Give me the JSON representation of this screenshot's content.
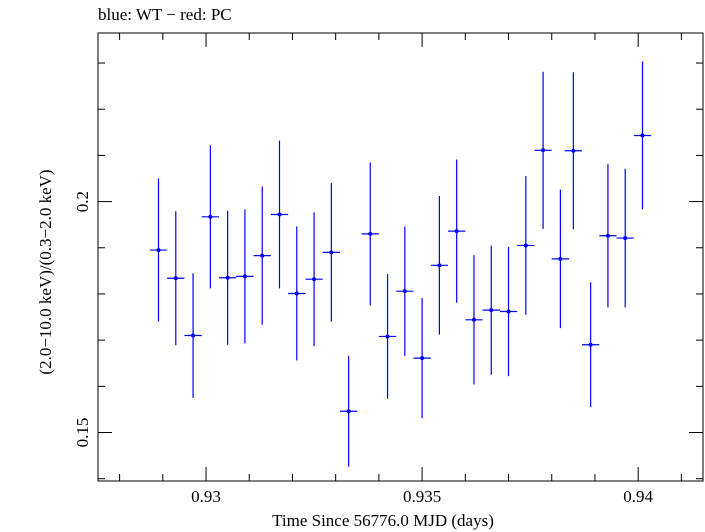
{
  "chart_data": {
    "type": "scatter",
    "title": "blue: WT − red: PC",
    "xlabel": "Time Since 56776.0 MJD (days)",
    "ylabel": "(2.0−10.0 keV)/(0.3−2.0 keV)",
    "xlim": [
      0.9275,
      0.9415
    ],
    "ylim": [
      0.1395,
      0.2365
    ],
    "x_ticks": [
      0.93,
      0.935,
      0.94
    ],
    "x_tick_labels": [
      "0.93",
      "0.935",
      "0.94"
    ],
    "y_ticks": [
      0.15,
      0.2
    ],
    "y_tick_labels": [
      "0.15",
      "0.2"
    ],
    "grid": false,
    "series": [
      {
        "color": "#0000ff",
        "x_err": 0.0002,
        "points": [
          {
            "x": 0.9289,
            "y": 0.1895,
            "err": 0.0155
          },
          {
            "x": 0.9293,
            "y": 0.1834,
            "err": 0.0145
          },
          {
            "x": 0.9297,
            "y": 0.171,
            "err": 0.0135
          },
          {
            "x": 0.9301,
            "y": 0.1967,
            "err": 0.0155
          },
          {
            "x": 0.9305,
            "y": 0.1835,
            "err": 0.0145
          },
          {
            "x": 0.9309,
            "y": 0.1838,
            "err": 0.0145
          },
          {
            "x": 0.9313,
            "y": 0.1883,
            "err": 0.015
          },
          {
            "x": 0.9317,
            "y": 0.1972,
            "err": 0.016
          },
          {
            "x": 0.9321,
            "y": 0.1801,
            "err": 0.0145
          },
          {
            "x": 0.9325,
            "y": 0.1832,
            "err": 0.0145
          },
          {
            "x": 0.9329,
            "y": 0.189,
            "err": 0.015
          },
          {
            "x": 0.9333,
            "y": 0.1546,
            "err": 0.012
          },
          {
            "x": 0.9338,
            "y": 0.193,
            "err": 0.0155
          },
          {
            "x": 0.9342,
            "y": 0.1708,
            "err": 0.0135
          },
          {
            "x": 0.9346,
            "y": 0.1806,
            "err": 0.014
          },
          {
            "x": 0.935,
            "y": 0.1661,
            "err": 0.013
          },
          {
            "x": 0.9354,
            "y": 0.1862,
            "err": 0.015
          },
          {
            "x": 0.9358,
            "y": 0.1936,
            "err": 0.0155
          },
          {
            "x": 0.9362,
            "y": 0.1744,
            "err": 0.014
          },
          {
            "x": 0.9366,
            "y": 0.1765,
            "err": 0.014
          },
          {
            "x": 0.937,
            "y": 0.1762,
            "err": 0.014
          },
          {
            "x": 0.9374,
            "y": 0.1905,
            "err": 0.015
          },
          {
            "x": 0.9378,
            "y": 0.2111,
            "err": 0.017
          },
          {
            "x": 0.9382,
            "y": 0.1876,
            "err": 0.015
          },
          {
            "x": 0.9385,
            "y": 0.211,
            "err": 0.017
          },
          {
            "x": 0.9389,
            "y": 0.169,
            "err": 0.0135
          },
          {
            "x": 0.9393,
            "y": 0.1926,
            "err": 0.0155
          },
          {
            "x": 0.9397,
            "y": 0.1921,
            "err": 0.015
          },
          {
            "x": 0.9401,
            "y": 0.2143,
            "err": 0.016
          }
        ]
      }
    ]
  }
}
